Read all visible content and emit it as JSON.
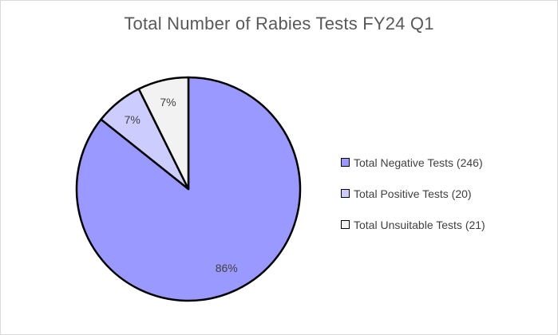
{
  "chart_data": {
    "type": "pie",
    "title": "Total Number of Rabies Tests FY24 Q1",
    "slices": [
      {
        "label": "Total Negative Tests (246)",
        "value": 246,
        "percent_label": "86%",
        "color": "#9999ff"
      },
      {
        "label": "Total Positive Tests (20)",
        "value": 20,
        "percent_label": "7%",
        "color": "#ccccff"
      },
      {
        "label": "Total Unsuitable Tests (21)",
        "value": 21,
        "percent_label": "7%",
        "color": "#f2f2f2"
      }
    ],
    "legend_position": "right",
    "slice_border_color": "#000000"
  }
}
